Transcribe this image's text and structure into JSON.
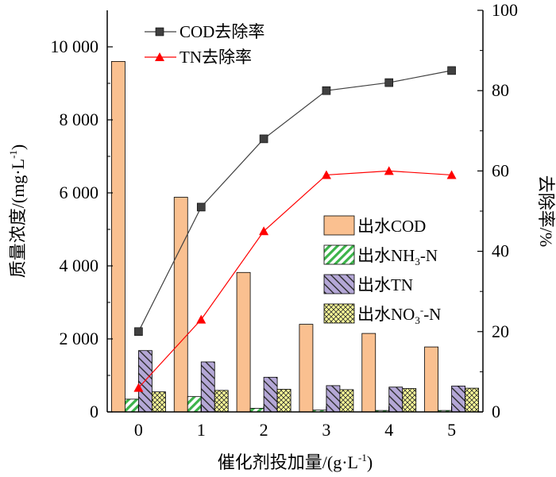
{
  "chart_data": {
    "type": "bar",
    "xlabel": {
      "main": "催化剂投加量/(g·L",
      "sup": "-1",
      "close": ")"
    },
    "ylabel": {
      "main": "质量浓度/(mg·L",
      "sup": "-1",
      "close": ")"
    },
    "y2label": "去除率/%",
    "categories": [
      "0",
      "1",
      "2",
      "3",
      "4",
      "5"
    ],
    "ylim": [
      0,
      11000
    ],
    "y_ticks": [
      0,
      2000,
      4000,
      6000,
      8000,
      10000
    ],
    "y_tick_labels": [
      "0",
      "2 000",
      "4 000",
      "6 000",
      "8 000",
      "10 000"
    ],
    "y2lim": [
      0,
      100
    ],
    "y2_ticks": [
      0,
      20,
      40,
      60,
      80,
      100
    ],
    "y2_tick_labels": [
      "0",
      "20",
      "40",
      "60",
      "80",
      "100"
    ],
    "bar_series": [
      {
        "key": "cod",
        "name": {
          "main": "出水COD"
        },
        "color": "#fac090",
        "pattern": "solid",
        "values": [
          9600,
          5880,
          3820,
          2400,
          2150,
          1780
        ]
      },
      {
        "key": "nh3",
        "name": {
          "main": "出水NH",
          "sub": "3",
          "rest": "-N"
        },
        "color": "#3cb44a",
        "pattern": "diag-green",
        "values": [
          350,
          420,
          100,
          50,
          40,
          40
        ]
      },
      {
        "key": "tn",
        "name": {
          "main": "出水TN"
        },
        "color": "#b4a7d6",
        "pattern": "diag-purple",
        "values": [
          1680,
          1370,
          950,
          720,
          680,
          710
        ]
      },
      {
        "key": "no3",
        "name": {
          "main": "出水NO",
          "sub": "3",
          "sup": "-",
          "rest": "-N"
        },
        "color": "#ffff99",
        "pattern": "cross-yellow",
        "values": [
          550,
          590,
          620,
          610,
          640,
          650
        ]
      }
    ],
    "line_series": [
      {
        "key": "cod_removal",
        "name": "COD去除率",
        "color": "#404040",
        "marker": "square",
        "values": [
          20,
          51,
          68,
          80,
          82,
          85
        ]
      },
      {
        "key": "tn_removal",
        "name": "TN去除率",
        "color": "#ff0000",
        "marker": "triangle",
        "values": [
          6,
          23,
          45,
          59,
          60,
          59
        ]
      }
    ],
    "legend_position": "top-left (lines) and right (bars)"
  }
}
